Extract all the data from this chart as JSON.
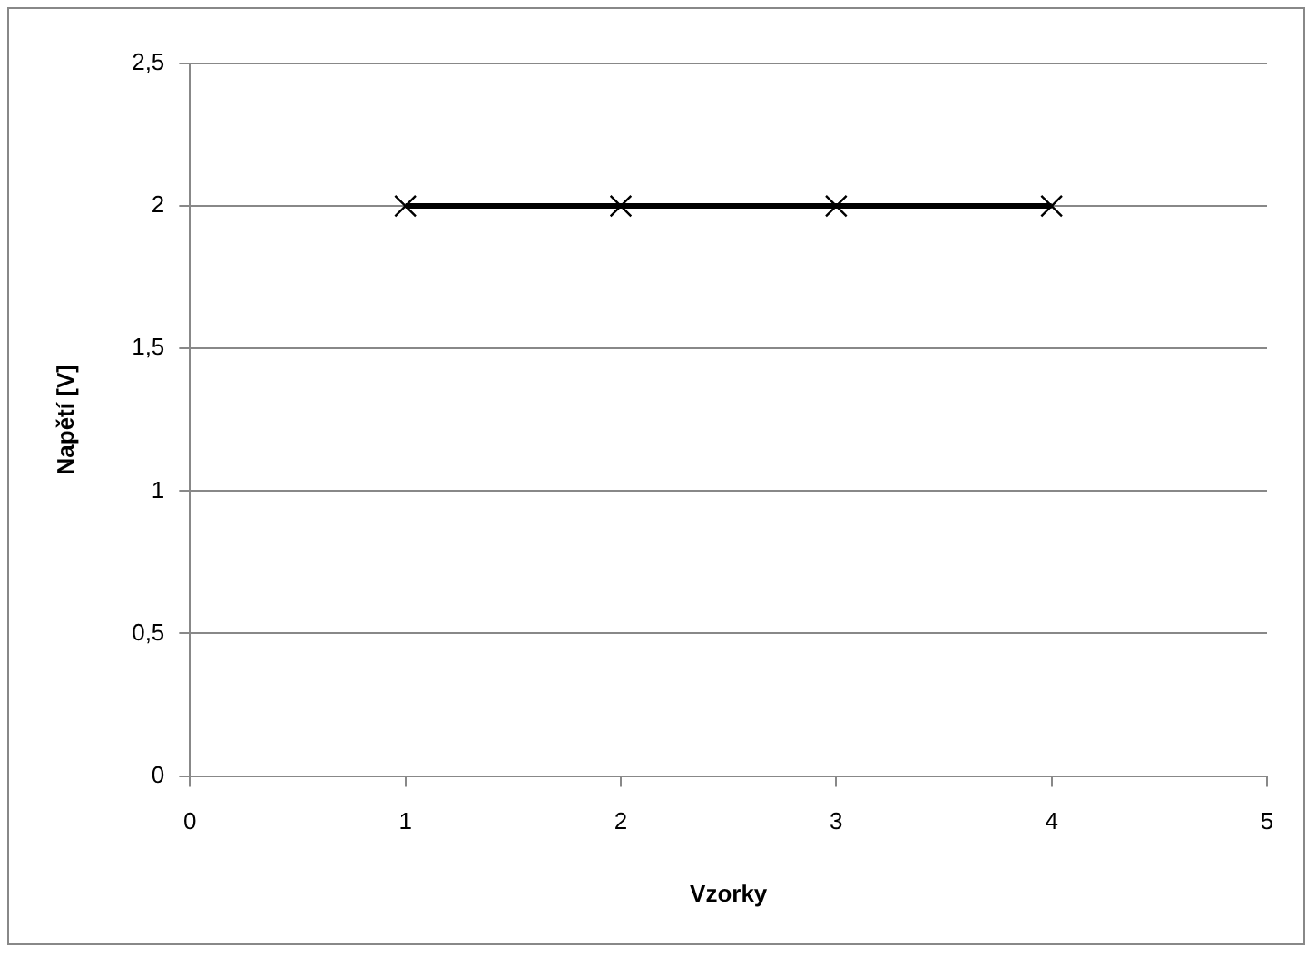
{
  "chart_data": {
    "type": "line",
    "xlabel": "Vzorky",
    "ylabel": "Napětí [V]",
    "x": [
      1,
      2,
      3,
      4
    ],
    "series": [
      {
        "color": "#000000",
        "values": [
          2,
          2,
          2,
          2
        ]
      }
    ],
    "xlim": [
      0,
      5
    ],
    "xticks": [
      0,
      1,
      2,
      3,
      4,
      5
    ],
    "ylim": [
      0,
      2.5
    ],
    "yticks": [
      0,
      {
        "value": 0.5,
        "label": "0,5"
      },
      1,
      {
        "value": 1.5,
        "label": "1,5"
      },
      2,
      {
        "value": 2.5,
        "label": "2,5"
      }
    ],
    "grid": "y",
    "legend": false,
    "marker": "cross",
    "line_style": "solid"
  }
}
